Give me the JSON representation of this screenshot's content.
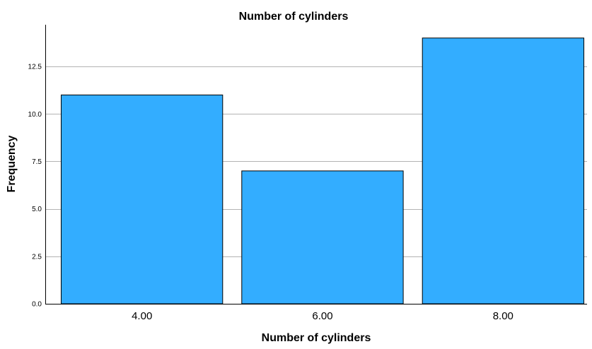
{
  "chart_data": {
    "type": "bar",
    "title": "Number of cylinders",
    "xlabel": "Number of cylinders",
    "ylabel": "Frequency",
    "categories": [
      "4.00",
      "6.00",
      "8.00"
    ],
    "values": [
      11,
      7,
      14
    ],
    "ylim": [
      0,
      14.7
    ],
    "yticks": [
      0,
      2.5,
      5,
      7.5,
      10,
      12.5
    ],
    "ytick_labels": [
      "0.0",
      "2.5",
      "5.0",
      "7.5",
      "10.0",
      "12.5"
    ],
    "grid": true,
    "colors": {
      "bar_fill": "#33adff",
      "bar_stroke": "#000000",
      "grid": "#b3b3b3",
      "axis": "#000000"
    }
  }
}
